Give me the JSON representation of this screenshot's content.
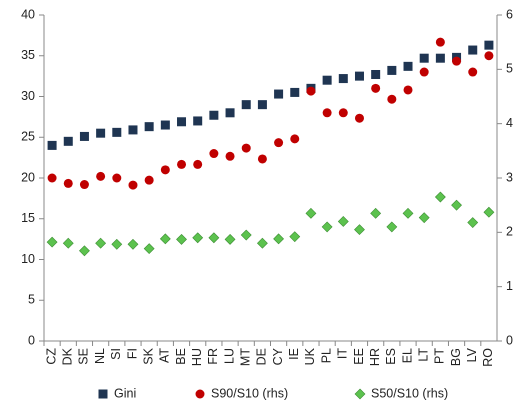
{
  "chart_data": {
    "type": "scatter",
    "categories": [
      "CZ",
      "DK",
      "SE",
      "NL",
      "SI",
      "FI",
      "SK",
      "AT",
      "BE",
      "HU",
      "FR",
      "LU",
      "MT",
      "DE",
      "CY",
      "IE",
      "UK",
      "PL",
      "IT",
      "EE",
      "HR",
      "ES",
      "EL",
      "LT",
      "PT",
      "BG",
      "LV",
      "RO"
    ],
    "series": [
      {
        "name": "Gini",
        "color": "#1f3552",
        "marker": "square",
        "values": [
          24.0,
          24.5,
          25.1,
          25.5,
          25.6,
          25.9,
          26.3,
          26.5,
          26.9,
          27.0,
          27.7,
          28.0,
          29.0,
          29.0,
          30.3,
          30.5,
          31.0,
          32.0,
          32.2,
          32.5,
          32.7,
          33.2,
          33.7,
          34.7,
          34.7,
          34.8,
          35.7,
          36.3
        ]
      },
      {
        "name": "S90/S10 (rhs)",
        "color": "#c00000",
        "marker": "circle",
        "axis": "y2",
        "values": [
          3.0,
          2.9,
          2.88,
          3.03,
          3.0,
          2.87,
          2.96,
          3.15,
          3.25,
          3.25,
          3.45,
          3.4,
          3.55,
          3.35,
          3.65,
          3.72,
          4.6,
          4.2,
          4.2,
          4.1,
          4.65,
          4.45,
          4.62,
          4.95,
          5.5,
          5.15,
          4.95,
          5.25
        ]
      },
      {
        "name": "S50/S10 (rhs)",
        "color": "#5cc24e",
        "marker": "diamond",
        "axis": "y2",
        "values": [
          1.82,
          1.8,
          1.66,
          1.8,
          1.78,
          1.78,
          1.7,
          1.88,
          1.87,
          1.9,
          1.9,
          1.87,
          1.95,
          1.8,
          1.88,
          1.92,
          2.35,
          2.1,
          2.2,
          2.05,
          2.35,
          2.1,
          2.35,
          2.27,
          2.65,
          2.5,
          2.18,
          2.37
        ]
      }
    ],
    "ylim": [
      0,
      40
    ],
    "yticks": [
      0,
      5,
      10,
      15,
      20,
      25,
      30,
      35,
      40
    ],
    "y2lim": [
      0,
      6
    ],
    "y2ticks": [
      0,
      1,
      2,
      3,
      4,
      5,
      6
    ],
    "grid": false,
    "legend": "bottom"
  }
}
